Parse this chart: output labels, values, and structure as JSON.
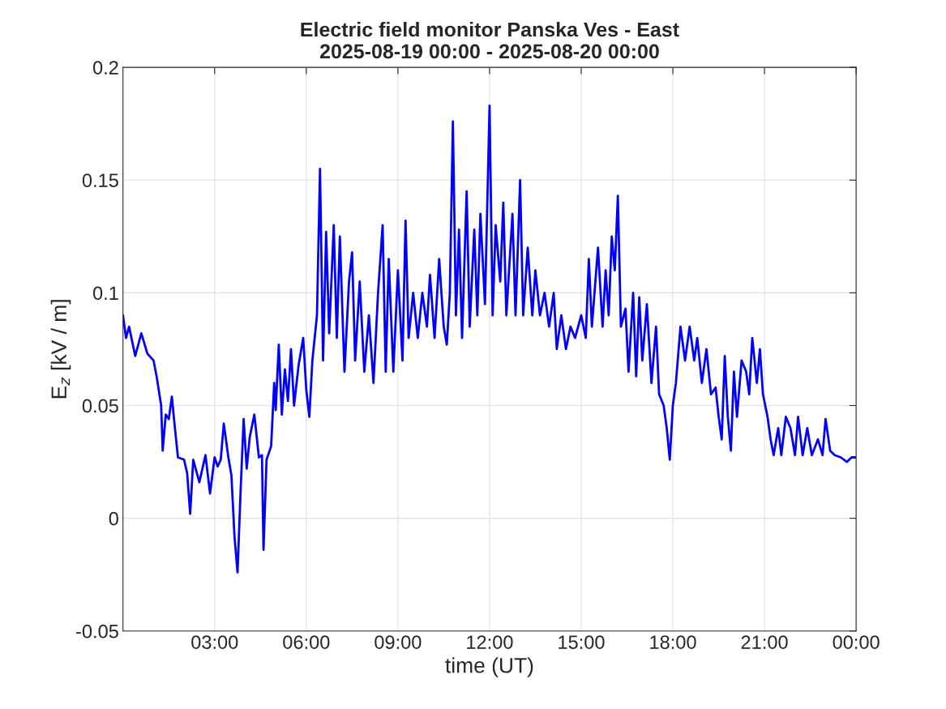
{
  "chart_data": {
    "type": "line",
    "title": "Electric field monitor Panska Ves - East\n2025-08-19 00:00 - 2025-08-20 00:00",
    "xlabel": "time (UT)",
    "ylabel": "E$_{z}$ [kV / m]",
    "xlim": [
      0,
      24
    ],
    "ylim": [
      -0.05,
      0.2
    ],
    "xticks": [
      {
        "value": 3,
        "label": "03:00"
      },
      {
        "value": 6,
        "label": "06:00"
      },
      {
        "value": 9,
        "label": "09:00"
      },
      {
        "value": 12,
        "label": "12:00"
      },
      {
        "value": 15,
        "label": "15:00"
      },
      {
        "value": 18,
        "label": "18:00"
      },
      {
        "value": 21,
        "label": "21:00"
      },
      {
        "value": 24,
        "label": "00:00"
      }
    ],
    "yticks": [
      -0.05,
      0,
      0.05,
      0.1,
      0.15,
      0.2
    ],
    "grid": true,
    "marker": "none",
    "line_style": "solid",
    "series": [
      {
        "color": "#0000ff",
        "x": [
          0.0,
          0.1,
          0.2,
          0.4,
          0.6,
          0.8,
          1.0,
          1.1,
          1.25,
          1.3,
          1.4,
          1.5,
          1.6,
          1.7,
          1.8,
          2.0,
          2.1,
          2.2,
          2.3,
          2.5,
          2.7,
          2.85,
          3.0,
          3.1,
          3.2,
          3.3,
          3.45,
          3.55,
          3.65,
          3.75,
          3.85,
          3.95,
          4.05,
          4.15,
          4.3,
          4.45,
          4.55,
          4.6,
          4.7,
          4.85,
          4.95,
          5.0,
          5.1,
          5.2,
          5.3,
          5.4,
          5.5,
          5.6,
          5.75,
          5.9,
          6.0,
          6.1,
          6.2,
          6.35,
          6.45,
          6.55,
          6.65,
          6.75,
          6.9,
          7.0,
          7.1,
          7.25,
          7.4,
          7.5,
          7.6,
          7.75,
          7.9,
          8.05,
          8.2,
          8.35,
          8.5,
          8.6,
          8.7,
          8.85,
          9.0,
          9.15,
          9.25,
          9.35,
          9.5,
          9.65,
          9.8,
          9.95,
          10.05,
          10.2,
          10.35,
          10.5,
          10.6,
          10.7,
          10.8,
          10.9,
          11.0,
          11.1,
          11.25,
          11.35,
          11.5,
          11.6,
          11.7,
          11.85,
          12.0,
          12.1,
          12.2,
          12.35,
          12.45,
          12.55,
          12.75,
          12.85,
          13.0,
          13.1,
          13.25,
          13.4,
          13.5,
          13.65,
          13.8,
          13.95,
          14.1,
          14.2,
          14.35,
          14.5,
          14.65,
          14.8,
          15.0,
          15.15,
          15.25,
          15.35,
          15.55,
          15.7,
          15.8,
          15.9,
          16.0,
          16.1,
          16.2,
          16.3,
          16.45,
          16.55,
          16.7,
          16.8,
          16.9,
          17.0,
          17.15,
          17.3,
          17.45,
          17.55,
          17.7,
          17.8,
          17.9,
          18.0,
          18.1,
          18.25,
          18.4,
          18.55,
          18.7,
          18.8,
          18.95,
          19.1,
          19.25,
          19.4,
          19.5,
          19.6,
          19.7,
          19.8,
          19.9,
          20.0,
          20.1,
          20.25,
          20.4,
          20.5,
          20.6,
          20.75,
          20.85,
          20.95,
          21.1,
          21.2,
          21.3,
          21.45,
          21.55,
          21.7,
          21.85,
          22.0,
          22.1,
          22.25,
          22.4,
          22.55,
          22.75,
          22.9,
          23.0,
          23.15,
          23.3,
          23.5,
          23.7,
          23.85,
          24.0
        ],
        "values": [
          0.09,
          0.08,
          0.085,
          0.072,
          0.082,
          0.073,
          0.07,
          0.063,
          0.05,
          0.03,
          0.046,
          0.044,
          0.054,
          0.04,
          0.027,
          0.026,
          0.02,
          0.002,
          0.026,
          0.016,
          0.028,
          0.011,
          0.027,
          0.023,
          0.026,
          0.042,
          0.027,
          0.019,
          -0.008,
          -0.024,
          0.012,
          0.044,
          0.022,
          0.036,
          0.046,
          0.027,
          0.028,
          -0.014,
          0.026,
          0.032,
          0.06,
          0.048,
          0.077,
          0.046,
          0.066,
          0.052,
          0.075,
          0.05,
          0.068,
          0.08,
          0.057,
          0.045,
          0.07,
          0.09,
          0.155,
          0.07,
          0.127,
          0.082,
          0.13,
          0.08,
          0.125,
          0.065,
          0.105,
          0.118,
          0.07,
          0.105,
          0.065,
          0.09,
          0.06,
          0.1,
          0.13,
          0.065,
          0.115,
          0.065,
          0.11,
          0.07,
          0.132,
          0.08,
          0.1,
          0.08,
          0.1,
          0.085,
          0.108,
          0.08,
          0.115,
          0.085,
          0.077,
          0.1,
          0.176,
          0.09,
          0.128,
          0.08,
          0.145,
          0.085,
          0.128,
          0.09,
          0.135,
          0.095,
          0.183,
          0.09,
          0.13,
          0.105,
          0.14,
          0.09,
          0.135,
          0.09,
          0.15,
          0.09,
          0.12,
          0.09,
          0.11,
          0.09,
          0.1,
          0.085,
          0.1,
          0.075,
          0.09,
          0.075,
          0.085,
          0.08,
          0.09,
          0.08,
          0.115,
          0.085,
          0.12,
          0.085,
          0.11,
          0.09,
          0.125,
          0.11,
          0.143,
          0.085,
          0.093,
          0.065,
          0.1,
          0.063,
          0.098,
          0.07,
          0.095,
          0.06,
          0.085,
          0.055,
          0.05,
          0.04,
          0.026,
          0.05,
          0.06,
          0.085,
          0.07,
          0.085,
          0.07,
          0.08,
          0.06,
          0.075,
          0.055,
          0.058,
          0.045,
          0.035,
          0.072,
          0.045,
          0.03,
          0.065,
          0.045,
          0.07,
          0.065,
          0.055,
          0.08,
          0.06,
          0.075,
          0.055,
          0.045,
          0.035,
          0.028,
          0.04,
          0.028,
          0.045,
          0.04,
          0.028,
          0.045,
          0.028,
          0.04,
          0.028,
          0.035,
          0.028,
          0.044,
          0.03,
          0.028,
          0.027,
          0.025,
          0.027,
          0.027
        ]
      }
    ]
  }
}
